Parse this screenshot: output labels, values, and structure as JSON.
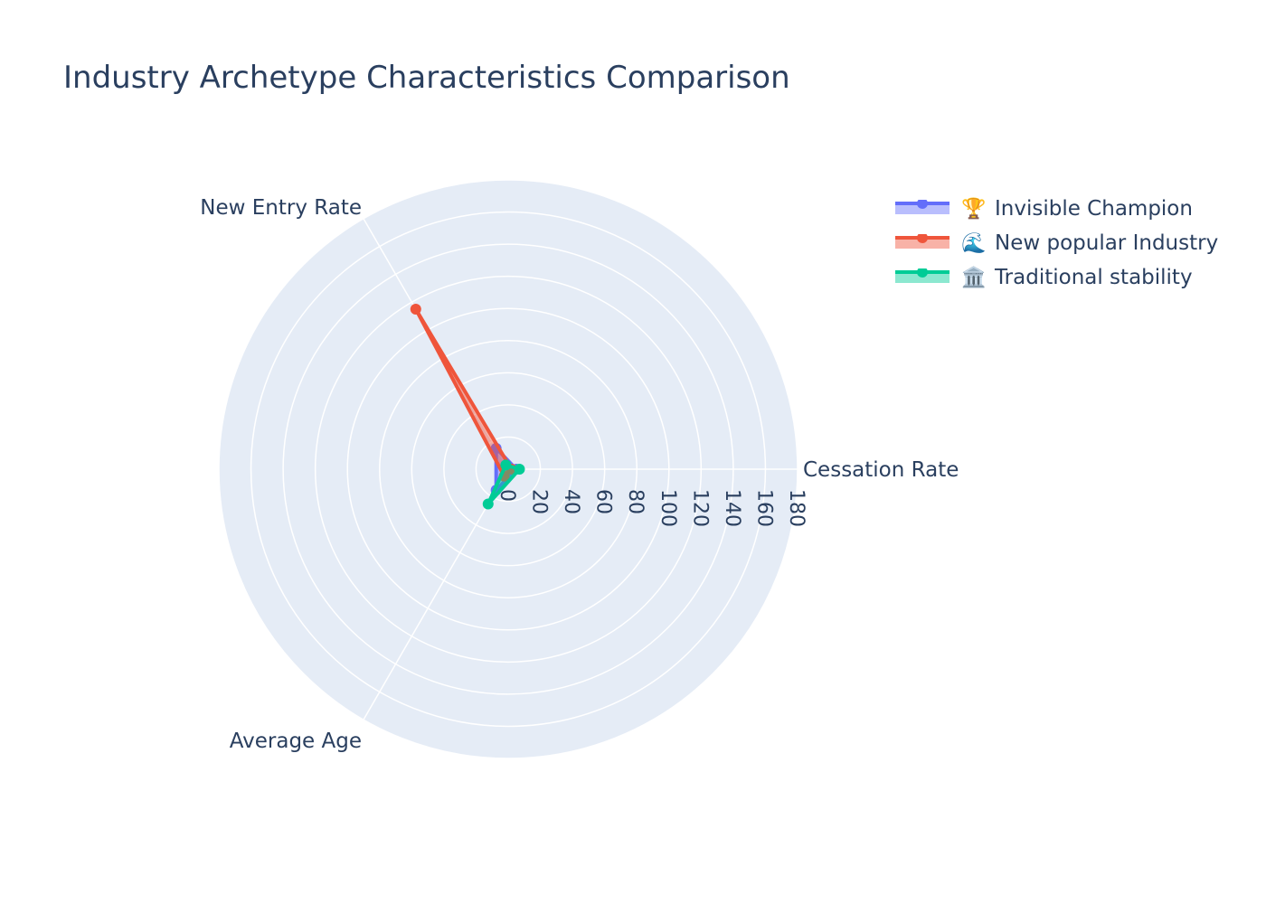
{
  "chart_data": {
    "type": "radar",
    "title": "Industry Archetype Characteristics Comparison",
    "axes": [
      "Cessation Rate",
      "New Entry Rate",
      "Average Age"
    ],
    "radial_range": [
      0,
      180
    ],
    "radial_ticks": [
      "0",
      "20",
      "40",
      "60",
      "80",
      "100",
      "120",
      "140",
      "160",
      "180"
    ],
    "grid": true,
    "legend_position": "top-right",
    "series": [
      {
        "name": "Invisible Champion",
        "icon": "🏆",
        "color": "#636efa",
        "values": [
          5,
          15,
          15
        ]
      },
      {
        "name": "New popular Industry",
        "icon": "🌊",
        "color": "#ef553b",
        "values": [
          2,
          115,
          5
        ]
      },
      {
        "name": "Traditional stability",
        "icon": "🏛️",
        "color": "#00cc96",
        "values": [
          7,
          3,
          25
        ]
      }
    ]
  }
}
